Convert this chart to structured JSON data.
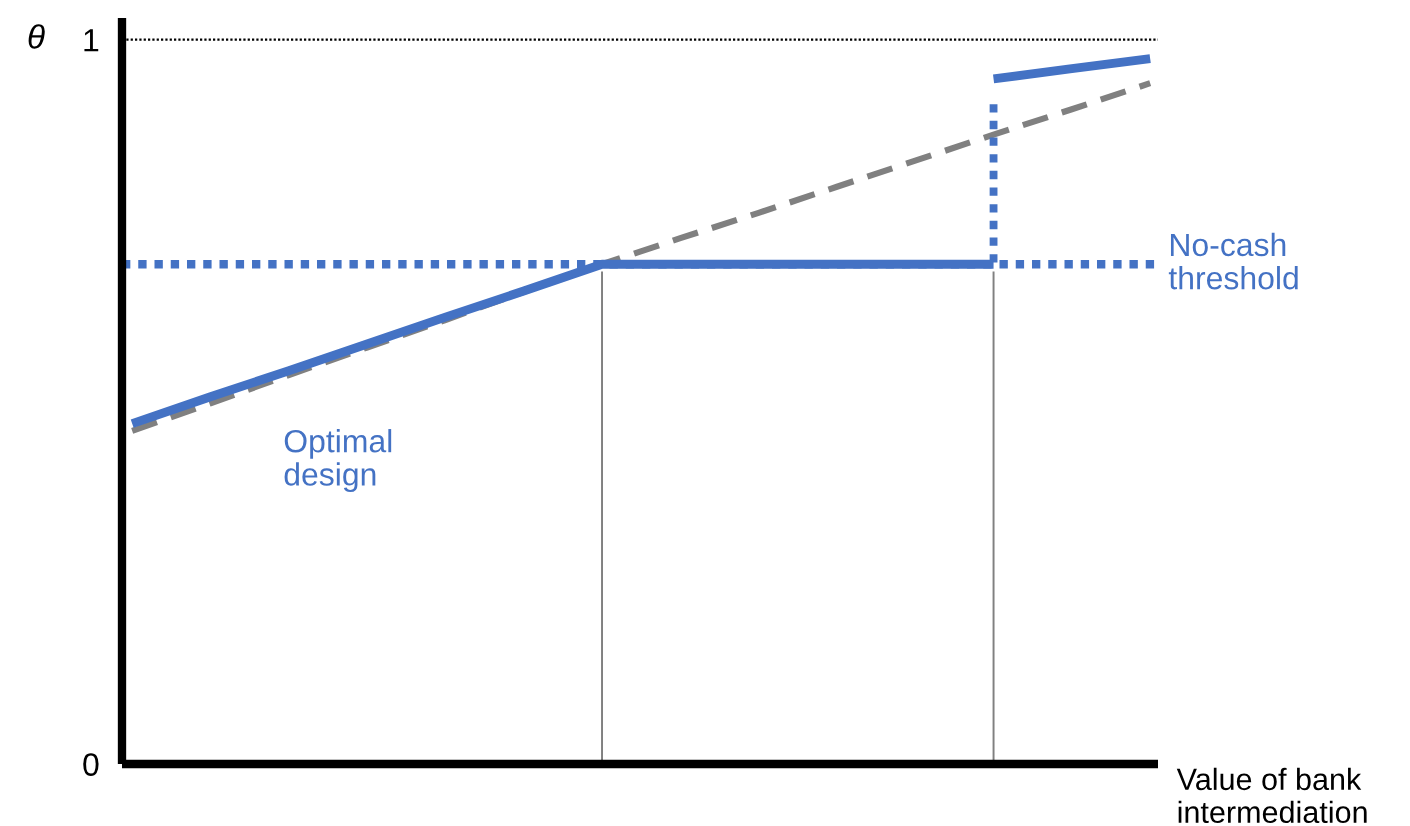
{
  "chart_data": {
    "type": "line",
    "xlabel": "Value of bank intermediation",
    "ylabel": "θ",
    "categories": [
      null,
      null,
      null,
      null,
      null,
      null,
      null,
      null,
      null,
      null,
      null,
      null,
      null,
      null
    ],
    "ylim": [
      0,
      1.03
    ],
    "yticks": [
      0,
      1
    ],
    "tick_labels": "y",
    "series": [
      {
        "type": "bar",
        "color": "#808080",
        "values": [
          null,
          null,
          null,
          null,
          null,
          null,
          0.68,
          null,
          null,
          null,
          null,
          0.68,
          null,
          null
        ]
      },
      {
        "color": "#808080",
        "line_style": "dashed",
        "values": [
          0.46,
          0.498,
          0.537,
          0.575,
          0.613,
          0.652,
          0.69,
          0.726,
          0.761,
          0.797,
          0.833,
          0.869,
          0.904,
          0.94
        ]
      },
      {
        "type": "bar",
        "line_style": "dotted",
        "color": "#4472c4",
        "base": [
          null,
          null,
          null,
          null,
          null,
          null,
          null,
          null,
          null,
          null,
          null,
          0.69,
          null,
          null
        ],
        "values": [
          null,
          null,
          null,
          null,
          null,
          null,
          null,
          null,
          null,
          null,
          null,
          0.23,
          null,
          null
        ]
      },
      {
        "name": "Optimal design",
        "color": "#4472c4",
        "values": [
          0.47,
          0.507,
          0.543,
          0.58,
          0.617,
          0.653,
          0.69,
          0.69,
          0.69,
          0.69,
          0.69,
          0.69,
          null,
          null
        ]
      },
      {
        "color": "#4472c4",
        "values": [
          null,
          null,
          null,
          null,
          null,
          null,
          null,
          null,
          null,
          null,
          null,
          0.946,
          0.96,
          0.974
        ]
      }
    ],
    "ref_lines": [
      {
        "axis": "y",
        "value": 1,
        "color": "#000000",
        "line_style": "dotted"
      },
      {
        "axis": "y",
        "value": 0.69,
        "label": "No-cash threshold",
        "color": "#4472c4",
        "line_style": "dotted"
      }
    ]
  }
}
